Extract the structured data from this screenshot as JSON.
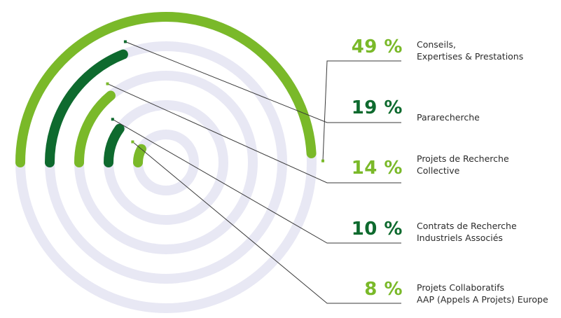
{
  "chart_data": {
    "type": "radial-bar",
    "unit": "%",
    "max": 100,
    "items": [
      {
        "value": 49,
        "value_label": "49 %",
        "label_lines": [
          "Conseils,",
          "Expertises & Prestations"
        ],
        "color": "#7ab929"
      },
      {
        "value": 19,
        "value_label": "19 %",
        "label_lines": [
          "Pararecherche"
        ],
        "color": "#0e6a2e"
      },
      {
        "value": 14,
        "value_label": "14 %",
        "label_lines": [
          "Projets de Recherche",
          "Collective"
        ],
        "color": "#7ab929"
      },
      {
        "value": 10,
        "value_label": "10 %",
        "label_lines": [
          "Contrats de Recherche",
          "Industriels Associés"
        ],
        "color": "#0e6a2e"
      },
      {
        "value": 8,
        "value_label": "8 %",
        "label_lines": [
          "Projets Collaboratifs",
          "AAP (Appels A Projets) Europe"
        ],
        "color": "#7ab929"
      }
    ]
  },
  "colors": {
    "track": "#e8e8f4",
    "leader": "#3a3a3a"
  }
}
